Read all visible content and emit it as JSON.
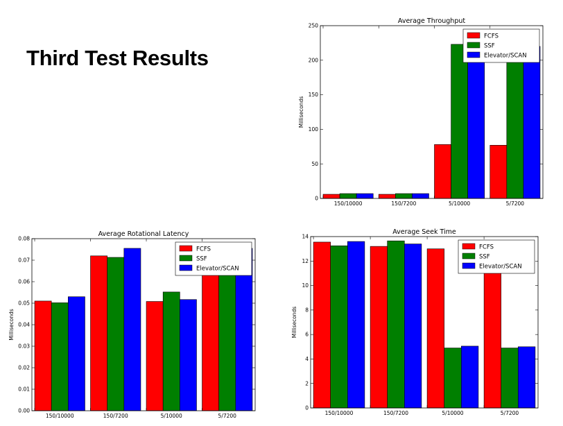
{
  "slide": {
    "title": "Third Test Results"
  },
  "colors": {
    "FCFS": "#ff0000",
    "SSF": "#007f00",
    "Elevator/SCAN": "#0000ff"
  },
  "chart_data": [
    {
      "id": "throughput",
      "type": "bar",
      "title": "Average Throughput",
      "xlabel": "",
      "ylabel": "Milliseconds",
      "categories": [
        "150/10000",
        "150/7200",
        "5/10000",
        "5/7200"
      ],
      "series": [
        {
          "name": "FCFS",
          "color": "#ff0000",
          "values": [
            6,
            6,
            78,
            77
          ]
        },
        {
          "name": "SSF",
          "color": "#007f00",
          "values": [
            7,
            7,
            223,
            222
          ]
        },
        {
          "name": "Elevator/SCAN",
          "color": "#0000ff",
          "values": [
            7,
            7,
            220,
            220
          ]
        }
      ],
      "ylim": [
        0,
        250
      ],
      "yticks": [
        0,
        50,
        100,
        150,
        200,
        250
      ],
      "grid": false,
      "legend": "top-right"
    },
    {
      "id": "latency",
      "type": "bar",
      "title": "Average Rotational Latency",
      "xlabel": "",
      "ylabel": "Milliseconds",
      "categories": [
        "150/10000",
        "150/7200",
        "5/10000",
        "5/7200"
      ],
      "series": [
        {
          "name": "FCFS",
          "color": "#ff0000",
          "values": [
            0.051,
            0.072,
            0.0508,
            0.072
          ]
        },
        {
          "name": "SSF",
          "color": "#007f00",
          "values": [
            0.0502,
            0.0713,
            0.0552,
            0.0713
          ]
        },
        {
          "name": "Elevator/SCAN",
          "color": "#0000ff",
          "values": [
            0.053,
            0.0755,
            0.0517,
            0.0755
          ]
        }
      ],
      "ylim": [
        0,
        0.08
      ],
      "yticks": [
        "0.00",
        "0.01",
        "0.02",
        "0.03",
        "0.04",
        "0.05",
        "0.06",
        "0.07",
        "0.08"
      ],
      "grid": false,
      "legend": "top-right"
    },
    {
      "id": "seek",
      "type": "bar",
      "title": "Average Seek Time",
      "xlabel": "",
      "ylabel": "Milliseconds",
      "categories": [
        "150/10000",
        "150/7200",
        "5/10000",
        "5/7200"
      ],
      "series": [
        {
          "name": "FCFS",
          "color": "#ff0000",
          "values": [
            13.55,
            13.2,
            13.0,
            13.0
          ]
        },
        {
          "name": "SSF",
          "color": "#007f00",
          "values": [
            13.25,
            13.65,
            4.9,
            4.9
          ]
        },
        {
          "name": "Elevator/SCAN",
          "color": "#0000ff",
          "values": [
            13.6,
            13.4,
            5.05,
            5.0
          ]
        }
      ],
      "ylim": [
        0,
        14
      ],
      "yticks": [
        0,
        2,
        4,
        6,
        8,
        10,
        12,
        14
      ],
      "grid": false,
      "legend": "top-right"
    }
  ]
}
